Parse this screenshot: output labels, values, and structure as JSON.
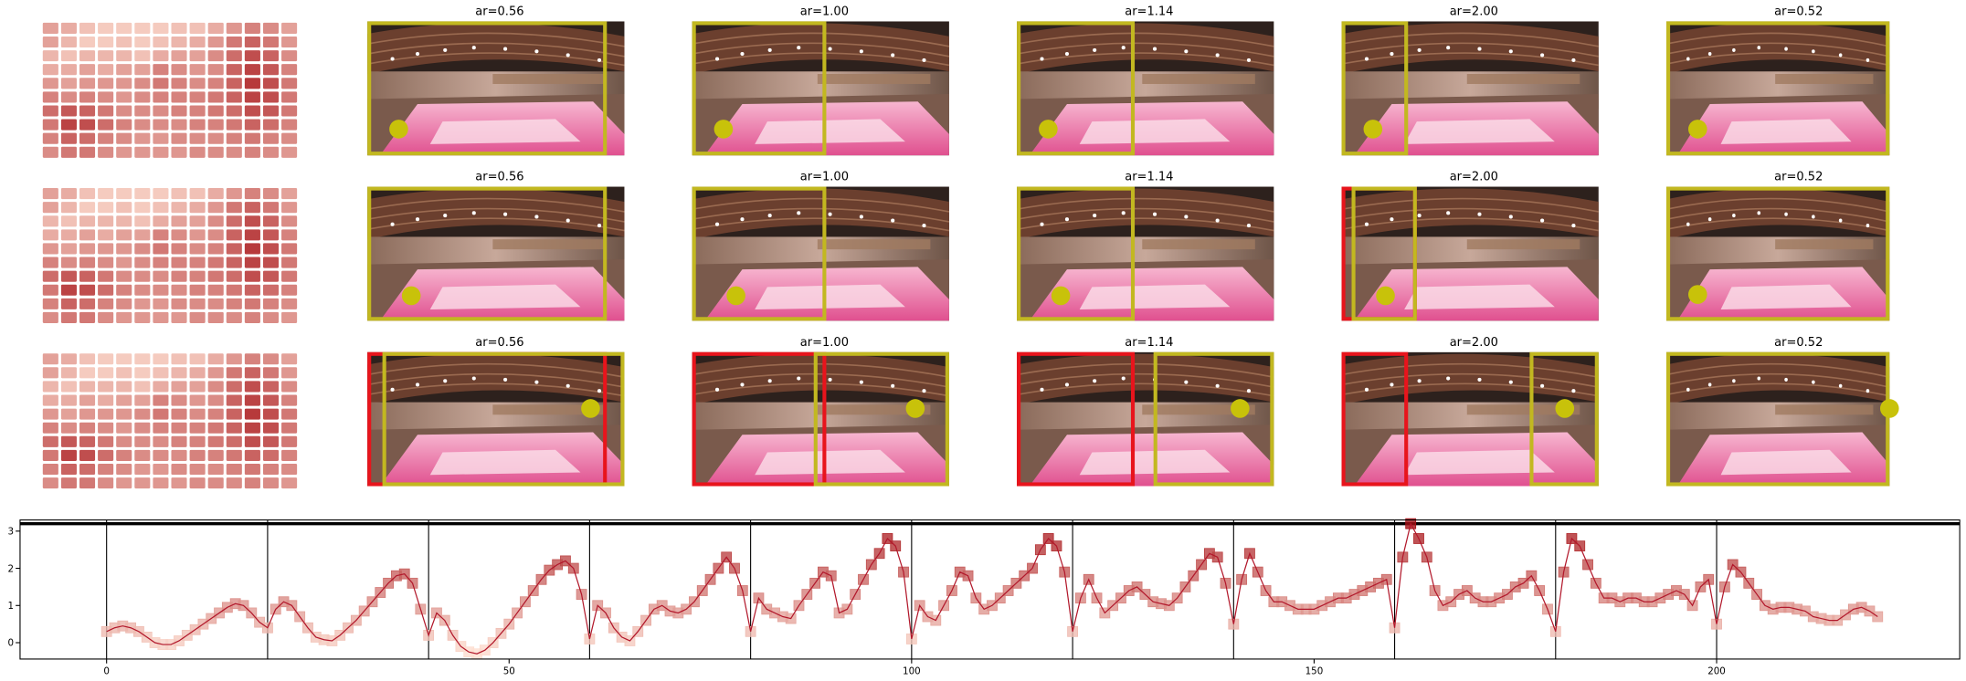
{
  "heatmap": {
    "values": [
      [
        0.3,
        0.25,
        0.15,
        0.1,
        0.1,
        0.1,
        0.1,
        0.15,
        0.15,
        0.25,
        0.35,
        0.45,
        0.4,
        0.3
      ],
      [
        0.3,
        0.2,
        0.1,
        0.1,
        0.15,
        0.1,
        0.15,
        0.2,
        0.25,
        0.35,
        0.5,
        0.6,
        0.5,
        0.35
      ],
      [
        0.2,
        0.15,
        0.2,
        0.2,
        0.2,
        0.15,
        0.25,
        0.3,
        0.3,
        0.4,
        0.55,
        0.7,
        0.6,
        0.4
      ],
      [
        0.25,
        0.25,
        0.3,
        0.25,
        0.3,
        0.3,
        0.45,
        0.4,
        0.35,
        0.4,
        0.6,
        0.75,
        0.65,
        0.45
      ],
      [
        0.35,
        0.3,
        0.35,
        0.35,
        0.35,
        0.4,
        0.5,
        0.45,
        0.4,
        0.45,
        0.6,
        0.8,
        0.7,
        0.5
      ],
      [
        0.45,
        0.4,
        0.45,
        0.4,
        0.35,
        0.4,
        0.45,
        0.45,
        0.45,
        0.5,
        0.6,
        0.75,
        0.7,
        0.5
      ],
      [
        0.55,
        0.65,
        0.6,
        0.5,
        0.4,
        0.4,
        0.4,
        0.45,
        0.45,
        0.5,
        0.55,
        0.7,
        0.65,
        0.5
      ],
      [
        0.5,
        0.75,
        0.7,
        0.55,
        0.45,
        0.4,
        0.4,
        0.4,
        0.45,
        0.45,
        0.5,
        0.6,
        0.55,
        0.45
      ],
      [
        0.45,
        0.6,
        0.55,
        0.45,
        0.4,
        0.35,
        0.35,
        0.4,
        0.4,
        0.4,
        0.45,
        0.5,
        0.45,
        0.4
      ],
      [
        0.4,
        0.5,
        0.5,
        0.4,
        0.35,
        0.35,
        0.35,
        0.35,
        0.4,
        0.4,
        0.4,
        0.45,
        0.4,
        0.35
      ]
    ]
  },
  "rows": [
    {
      "titles": [
        "ar=0.56",
        "ar=1.00",
        "ar=1.14",
        "ar=2.00",
        "ar=0.52"
      ]
    },
    {
      "titles": [
        "ar=0.56",
        "ar=1.00",
        "ar=1.14",
        "ar=2.00",
        "ar=0.52"
      ]
    },
    {
      "titles": [
        "ar=0.56",
        "ar=1.00",
        "ar=1.14",
        "ar=2.00",
        "ar=0.52"
      ]
    }
  ],
  "chart_data": {
    "type": "line",
    "x": [
      0,
      1,
      2,
      3,
      4,
      5,
      6,
      7,
      8,
      9,
      10,
      11,
      12,
      13,
      14,
      15,
      16,
      17,
      18,
      19,
      20,
      21,
      22,
      23,
      24,
      25,
      26,
      27,
      28,
      29,
      30,
      31,
      32,
      33,
      34,
      35,
      36,
      37,
      38,
      39,
      40,
      41,
      42,
      43,
      44,
      45,
      46,
      47,
      48,
      49,
      50,
      51,
      52,
      53,
      54,
      55,
      56,
      57,
      58,
      59,
      60,
      61,
      62,
      63,
      64,
      65,
      66,
      67,
      68,
      69,
      70,
      71,
      72,
      73,
      74,
      75,
      76,
      77,
      78,
      79,
      80,
      81,
      82,
      83,
      84,
      85,
      86,
      87,
      88,
      89,
      90,
      91,
      92,
      93,
      94,
      95,
      96,
      97,
      98,
      99,
      100,
      101,
      102,
      103,
      104,
      105,
      106,
      107,
      108,
      109,
      110,
      111,
      112,
      113,
      114,
      115,
      116,
      117,
      118,
      119,
      120,
      121,
      122,
      123,
      124,
      125,
      126,
      127,
      128,
      129,
      130,
      131,
      132,
      133,
      134,
      135,
      136,
      137,
      138,
      139,
      140,
      141,
      142,
      143,
      144,
      145,
      146,
      147,
      148,
      149,
      150,
      151,
      152,
      153,
      154,
      155,
      156,
      157,
      158,
      159,
      160,
      161,
      162,
      163,
      164,
      165,
      166,
      167,
      168,
      169,
      170,
      171,
      172,
      173,
      174,
      175,
      176,
      177,
      178,
      179,
      180,
      181,
      182,
      183,
      184,
      185,
      186,
      187,
      188,
      189,
      190,
      191,
      192,
      193,
      194,
      195,
      196,
      197,
      198,
      199,
      200,
      201,
      202,
      203,
      204,
      205,
      206,
      207,
      208,
      209,
      210,
      211,
      212,
      213,
      214,
      215,
      216,
      217,
      218,
      219,
      220
    ],
    "series": [
      {
        "color": "#b2182b",
        "values": [
          0.3,
          0.4,
          0.45,
          0.4,
          0.3,
          0.15,
          0.0,
          -0.05,
          -0.05,
          0.05,
          0.2,
          0.35,
          0.5,
          0.65,
          0.8,
          0.95,
          1.05,
          1.0,
          0.8,
          0.55,
          0.4,
          0.9,
          1.1,
          1.0,
          0.7,
          0.4,
          0.15,
          0.08,
          0.05,
          0.2,
          0.4,
          0.6,
          0.85,
          1.1,
          1.35,
          1.6,
          1.8,
          1.85,
          1.6,
          0.9,
          0.2,
          0.8,
          0.6,
          0.2,
          -0.1,
          -0.25,
          -0.3,
          -0.2,
          0.0,
          0.25,
          0.5,
          0.8,
          1.1,
          1.4,
          1.7,
          1.95,
          2.1,
          2.2,
          2.0,
          1.3,
          0.1,
          1.0,
          0.8,
          0.4,
          0.15,
          0.05,
          0.3,
          0.6,
          0.9,
          1.0,
          0.85,
          0.8,
          0.9,
          1.1,
          1.4,
          1.7,
          2.0,
          2.3,
          2.0,
          1.4,
          0.3,
          1.2,
          0.9,
          0.8,
          0.7,
          0.65,
          1.0,
          1.3,
          1.6,
          1.9,
          1.8,
          0.8,
          0.9,
          1.3,
          1.7,
          2.1,
          2.4,
          2.8,
          2.6,
          1.9,
          0.1,
          1.0,
          0.7,
          0.6,
          1.0,
          1.4,
          1.9,
          1.8,
          1.2,
          0.9,
          1.0,
          1.2,
          1.4,
          1.6,
          1.8,
          2.0,
          2.5,
          2.8,
          2.6,
          1.9,
          0.3,
          1.2,
          1.7,
          1.2,
          0.8,
          1.0,
          1.2,
          1.4,
          1.5,
          1.3,
          1.1,
          1.05,
          1.0,
          1.2,
          1.5,
          1.8,
          2.1,
          2.4,
          2.3,
          1.6,
          0.5,
          1.7,
          2.4,
          1.9,
          1.4,
          1.1,
          1.1,
          1.0,
          0.9,
          0.9,
          0.9,
          1.0,
          1.1,
          1.2,
          1.2,
          1.3,
          1.4,
          1.5,
          1.6,
          1.7,
          0.4,
          2.3,
          3.2,
          2.8,
          2.3,
          1.4,
          1.0,
          1.1,
          1.3,
          1.4,
          1.2,
          1.1,
          1.1,
          1.2,
          1.3,
          1.5,
          1.6,
          1.8,
          1.4,
          0.9,
          0.3,
          1.9,
          2.8,
          2.6,
          2.1,
          1.6,
          1.2,
          1.2,
          1.1,
          1.2,
          1.2,
          1.1,
          1.1,
          1.2,
          1.3,
          1.4,
          1.3,
          1.0,
          1.5,
          1.7,
          0.5,
          1.5,
          2.1,
          1.9,
          1.6,
          1.3,
          1.0,
          0.9,
          0.95,
          0.95,
          0.9,
          0.85,
          0.7,
          0.65,
          0.6,
          0.6,
          0.75,
          0.9,
          0.95,
          0.85,
          0.7
        ]
      }
    ],
    "xlim": [
      -10.75,
      230.2
    ],
    "ylim": [
      -0.44,
      3.3
    ],
    "xticks": [
      0,
      50,
      100,
      150,
      200
    ],
    "yticks": [
      0,
      1,
      2,
      3
    ],
    "vlines": [
      0,
      20,
      40,
      60,
      80,
      100,
      120,
      140,
      160,
      180,
      200
    ],
    "hline": 3.2,
    "colormap": "Reds"
  }
}
